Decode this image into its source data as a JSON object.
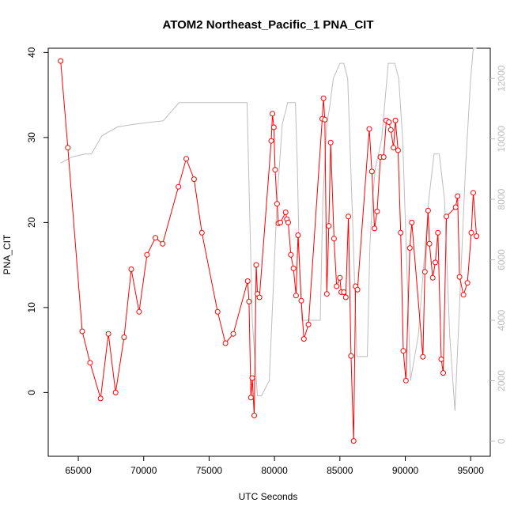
{
  "chart_data": {
    "type": "line",
    "title": "ATOM2 Northeast_Pacific_1 PNA_CIT",
    "xlabel": "UTC Seconds",
    "ylabel": "PNA_CIT",
    "xlim": [
      62700,
      96500
    ],
    "ylim": [
      -7.5,
      40.5
    ],
    "y2lim": [
      -500,
      13000
    ],
    "x_ticks": [
      65000,
      70000,
      75000,
      80000,
      85000,
      90000,
      95000
    ],
    "y_ticks": [
      0,
      10,
      20,
      30,
      40
    ],
    "y2_ticks": [
      0,
      2000,
      4000,
      6000,
      8000,
      10000,
      12000
    ],
    "grid": false,
    "legend": "none",
    "colors": {
      "primary": "#ff0000",
      "secondary": "#bdbdbd",
      "axis": "#000000"
    },
    "series": [
      {
        "axis": "left",
        "style": "line+points",
        "x": [
          63650,
          64200,
          65300,
          65900,
          66700,
          67300,
          67850,
          68500,
          69050,
          69650,
          70250,
          70900,
          71450,
          72650,
          73250,
          73850,
          74450,
          75650,
          76250,
          76850,
          77950,
          78050,
          78200,
          78300,
          78450,
          78600,
          78700,
          78850,
          79750,
          79850,
          79950,
          80050,
          80200,
          80300,
          80450,
          80850,
          80950,
          81050,
          81250,
          81450,
          81650,
          81800,
          82050,
          82250,
          82600,
          83650,
          83750,
          83850,
          84000,
          84150,
          84300,
          84550,
          84750,
          85000,
          85100,
          85300,
          85450,
          85650,
          85850,
          86050,
          86200,
          86350,
          87250,
          87450,
          87650,
          87850,
          88100,
          88350,
          88550,
          88750,
          88900,
          89100,
          89250,
          89450,
          89650,
          89850,
          90050,
          90350,
          90500,
          91350,
          91500,
          91750,
          91850,
          92100,
          92300,
          92500,
          92750,
          92900,
          93150,
          93850,
          94000,
          94150,
          94450,
          94750,
          95050,
          95200,
          95450
        ],
        "y": [
          39,
          28.8,
          7.2,
          3.5,
          -0.7,
          6.9,
          0,
          6.5,
          14.5,
          9.5,
          16.2,
          18.2,
          17.5,
          24.2,
          27.5,
          25.1,
          18.8,
          9.5,
          5.8,
          6.9,
          13.1,
          10.7,
          -0.6,
          1.7,
          -2.7,
          15,
          11.6,
          11.2,
          29.6,
          32.8,
          31.2,
          26.2,
          22.2,
          19.9,
          20,
          21.2,
          20.4,
          20,
          16.2,
          14.6,
          11.4,
          18.5,
          10.8,
          6.3,
          8,
          32.2,
          34.6,
          32.1,
          11.6,
          19.6,
          29.4,
          18.1,
          12.5,
          13.5,
          11.8,
          11.8,
          11.2,
          20.7,
          4.3,
          -5.7,
          12.5,
          12.1,
          31,
          26,
          19.3,
          21.3,
          27.7,
          27.7,
          32,
          31.8,
          30.9,
          28.8,
          32,
          28.5,
          18.8,
          4.9,
          1.4,
          17,
          20,
          4.2,
          14.2,
          21.4,
          17.5,
          13.5,
          15.3,
          18.8,
          3.9,
          2.3,
          20.7,
          21.8,
          23.1,
          13.6,
          11.5,
          12.9,
          18.8,
          23.5,
          18.4
        ]
      },
      {
        "axis": "right",
        "style": "line",
        "x": [
          63650,
          64500,
          65500,
          66000,
          66800,
          68000,
          69500,
          71500,
          72700,
          75000,
          77500,
          77900,
          78300,
          78700,
          79000,
          79600,
          79900,
          80200,
          80600,
          80900,
          81000,
          81300,
          81600,
          81750,
          81900,
          82100,
          83000,
          83500,
          83700,
          84000,
          84200,
          84500,
          85000,
          85300,
          85600,
          86000,
          86300,
          87100,
          87300,
          87500,
          87700,
          88200,
          88400,
          88700,
          89200,
          89500,
          89800,
          90100,
          90400,
          91000,
          91800,
          92200,
          92600,
          93000,
          93400,
          93800,
          94100,
          94600,
          95000,
          95200,
          95450
        ],
        "y": [
          9200,
          9400,
          9500,
          9500,
          10100,
          10400,
          10500,
          10600,
          11200,
          11200,
          11200,
          11200,
          4000,
          1500,
          1500,
          2000,
          5000,
          8000,
          10500,
          11000,
          11200,
          11200,
          11200,
          9000,
          6000,
          4000,
          4000,
          4000,
          8000,
          10500,
          11000,
          12000,
          12500,
          12500,
          12000,
          7000,
          2800,
          2800,
          6500,
          8000,
          9000,
          10000,
          11000,
          12500,
          12500,
          12000,
          10000,
          6000,
          2000,
          3500,
          8000,
          9500,
          9500,
          8000,
          3500,
          1000,
          4000,
          9000,
          12000,
          13000,
          13000
        ]
      }
    ]
  }
}
